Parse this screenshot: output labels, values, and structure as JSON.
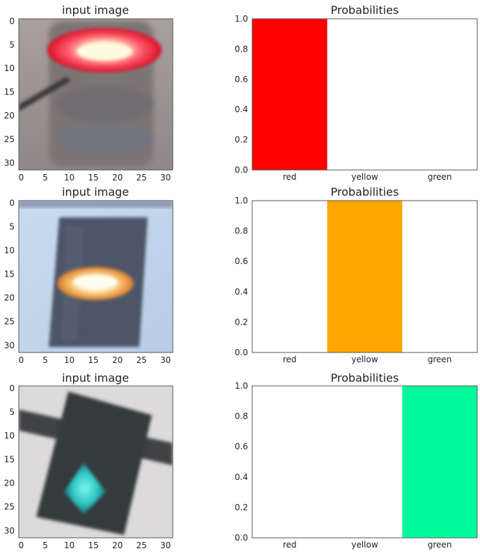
{
  "rows": [
    {
      "image_title": "input image",
      "light_color": "red",
      "image_x_ticks": [
        "0",
        "5",
        "10",
        "15",
        "20",
        "25",
        "30"
      ],
      "image_y_ticks": [
        "0",
        "5",
        "10",
        "15",
        "20",
        "25",
        "30"
      ]
    },
    {
      "image_title": "input image",
      "light_color": "yellow",
      "image_x_ticks": [
        "0",
        "5",
        "10",
        "15",
        "20",
        "25",
        "30"
      ],
      "image_y_ticks": [
        "0",
        "5",
        "10",
        "15",
        "20",
        "25",
        "30"
      ]
    },
    {
      "image_title": "input image",
      "light_color": "green",
      "image_x_ticks": [
        "0",
        "5",
        "10",
        "15",
        "20",
        "25",
        "30"
      ],
      "image_y_ticks": [
        "0",
        "5",
        "10",
        "15",
        "20",
        "25",
        "30"
      ]
    }
  ],
  "chart_data": [
    {
      "type": "bar",
      "title": "Probabilities",
      "categories": [
        "red",
        "yellow",
        "green"
      ],
      "values": [
        1.0,
        0.0,
        0.0
      ],
      "colors": [
        "#ff0000",
        "#ffa500",
        "#00fa9a"
      ],
      "ylim": [
        0,
        1.0
      ],
      "yticks": [
        "0.0",
        "0.2",
        "0.4",
        "0.6",
        "0.8",
        "1.0"
      ],
      "grid": false
    },
    {
      "type": "bar",
      "title": "Probabilities",
      "categories": [
        "red",
        "yellow",
        "green"
      ],
      "values": [
        0.0,
        1.0,
        0.0
      ],
      "colors": [
        "#ff0000",
        "#ffa500",
        "#00fa9a"
      ],
      "ylim": [
        0,
        1.0
      ],
      "yticks": [
        "0.0",
        "0.2",
        "0.4",
        "0.6",
        "0.8",
        "1.0"
      ],
      "grid": false
    },
    {
      "type": "bar",
      "title": "Probabilities",
      "categories": [
        "red",
        "yellow",
        "green"
      ],
      "values": [
        0.0,
        0.0,
        1.0
      ],
      "colors": [
        "#ff0000",
        "#ffa500",
        "#00fa9a"
      ],
      "ylim": [
        0,
        1.0
      ],
      "yticks": [
        "0.0",
        "0.2",
        "0.4",
        "0.6",
        "0.8",
        "1.0"
      ],
      "grid": false
    }
  ]
}
